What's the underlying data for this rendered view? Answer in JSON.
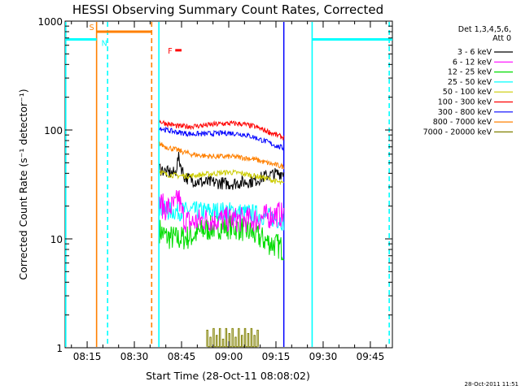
{
  "chart_data": {
    "type": "line",
    "title": "HESSI Observing Summary Count Rates, Corrected",
    "xlabel": "Start Time (28-Oct-11 08:08:02)",
    "ylabel": "Corrected Count Rate (s⁻¹ detector⁻¹)",
    "yscale": "log",
    "ylim": [
      1,
      1000
    ],
    "xlim_minutes_after_0800": [
      8.0,
      112.0
    ],
    "x_ticks": [
      "08:15",
      "08:30",
      "08:45",
      "09:00",
      "09:15",
      "09:30",
      "09:45"
    ],
    "y_ticks": [
      "1",
      "10",
      "100",
      "1000"
    ],
    "timestamp": "28-Oct-2011 11:51",
    "legend": {
      "placement": "top-right",
      "header": [
        "Det 1,3,4,5,6,",
        "Att 0"
      ],
      "entries": [
        {
          "label": "3 - 6 keV",
          "color": "#000000"
        },
        {
          "label": "6 - 12 keV",
          "color": "#ff00ff"
        },
        {
          "label": "12 - 25 keV",
          "color": "#00dd00"
        },
        {
          "label": "25 - 50 keV",
          "color": "#00ffff"
        },
        {
          "label": "50 - 100 keV",
          "color": "#cccc00"
        },
        {
          "label": "100 - 300 keV",
          "color": "#ff0000"
        },
        {
          "label": "300 - 800 keV",
          "color": "#0000ff"
        },
        {
          "label": "800 - 7000 keV",
          "color": "#ff8000"
        },
        {
          "label": "7000 - 20000 keV",
          "color": "#808000"
        }
      ]
    },
    "flags": [
      {
        "label": "S",
        "color": "#ff8000",
        "x_start": 18.0,
        "x_end": 35.5,
        "y": 800
      },
      {
        "label": "N",
        "color": "#00ffff",
        "x_start": 8.0,
        "x_end": 18.0,
        "y": 680
      },
      {
        "label": "N",
        "color": "#00ffff",
        "x_start": 86.5,
        "x_end": 112.0,
        "y": 680
      },
      {
        "label": "F",
        "color": "#ff0000",
        "x_start": 43.0,
        "x_end": 45.0,
        "y": 540
      }
    ],
    "markers": [
      {
        "color": "#00ffff",
        "style": "solid",
        "x": 8.2
      },
      {
        "color": "#ff8000",
        "style": "solid",
        "x": 18.0
      },
      {
        "color": "#00ffff",
        "style": "dashed",
        "x": 21.5
      },
      {
        "color": "#ff8000",
        "style": "dashed",
        "x": 35.5
      },
      {
        "color": "#00ffff",
        "style": "solid",
        "x": 37.8
      },
      {
        "color": "#0000ff",
        "style": "solid",
        "x": 77.5
      },
      {
        "color": "#00ffff",
        "style": "solid",
        "x": 86.5
      },
      {
        "color": "#00ffff",
        "style": "dashed",
        "x": 111.0
      }
    ],
    "series": [
      {
        "name": "3 - 6 keV",
        "color": "#000000",
        "x": [
          38,
          40,
          43,
          44,
          45,
          46,
          48,
          52,
          56,
          60,
          64,
          68,
          72,
          76,
          77.5
        ],
        "y": [
          45,
          41,
          40,
          56,
          45,
          37,
          35,
          33,
          33,
          32,
          33,
          34,
          38,
          40,
          41
        ]
      },
      {
        "name": "6 - 12 keV",
        "color": "#ff00ff",
        "x": [
          38,
          40,
          43,
          44,
          45,
          46,
          48,
          52,
          56,
          60,
          64,
          68,
          72,
          76,
          77.5
        ],
        "y": [
          21,
          19,
          20,
          25,
          18,
          15,
          14,
          15,
          15,
          15,
          15,
          15,
          16,
          17,
          16
        ]
      },
      {
        "name": "12 - 25 keV",
        "color": "#00dd00",
        "x": [
          38,
          40,
          44,
          48,
          52,
          56,
          60,
          64,
          68,
          72,
          76,
          77.5
        ],
        "y": [
          12,
          10.5,
          10,
          10.5,
          12,
          13,
          13,
          12.5,
          11,
          9.5,
          8.5,
          8
        ]
      },
      {
        "name": "25 - 50 keV",
        "color": "#00ffff",
        "x": [
          38,
          40,
          44,
          48,
          52,
          56,
          60,
          64,
          68,
          72,
          76,
          77.5
        ],
        "y": [
          20,
          18,
          18,
          18,
          18,
          18,
          18,
          17.5,
          17,
          16,
          15,
          14.5
        ]
      },
      {
        "name": "50 - 100 keV",
        "color": "#cccc00",
        "x": [
          38,
          40,
          44,
          48,
          52,
          56,
          60,
          64,
          68,
          72,
          76,
          77.5
        ],
        "y": [
          42,
          39,
          38,
          38,
          39,
          40,
          41,
          40,
          38,
          36,
          33,
          32
        ]
      },
      {
        "name": "100 - 300 keV",
        "color": "#ff0000",
        "x": [
          38,
          40,
          44,
          48,
          52,
          56,
          60,
          64,
          68,
          72,
          76,
          77.5
        ],
        "y": [
          120,
          115,
          108,
          108,
          110,
          113,
          115,
          114,
          108,
          98,
          88,
          85
        ]
      },
      {
        "name": "300 - 800 keV",
        "color": "#0000ff",
        "x": [
          38,
          40,
          44,
          48,
          52,
          56,
          60,
          64,
          68,
          72,
          76,
          77.5
        ],
        "y": [
          105,
          100,
          95,
          92,
          92,
          93,
          94,
          92,
          86,
          78,
          70,
          68
        ]
      },
      {
        "name": "800 - 7000 keV",
        "color": "#ff8000",
        "x": [
          38,
          40,
          44,
          48,
          52,
          56,
          60,
          64,
          68,
          72,
          76,
          77.5
        ],
        "y": [
          75,
          70,
          65,
          60,
          58,
          57,
          57,
          56,
          54,
          50,
          47,
          46
        ]
      },
      {
        "name": "7000 - 20000 keV",
        "color": "#808000",
        "x": [
          53,
          54,
          55,
          56,
          57,
          58,
          59,
          60,
          61,
          62,
          63,
          64,
          65,
          66,
          67,
          68,
          69
        ],
        "y": [
          1.45,
          1.25,
          1.5,
          1.3,
          1.5,
          1.2,
          1.5,
          1.35,
          1.5,
          1.25,
          1.5,
          1.3,
          1.5,
          1.35,
          1.5,
          1.3,
          1.45
        ]
      }
    ]
  }
}
